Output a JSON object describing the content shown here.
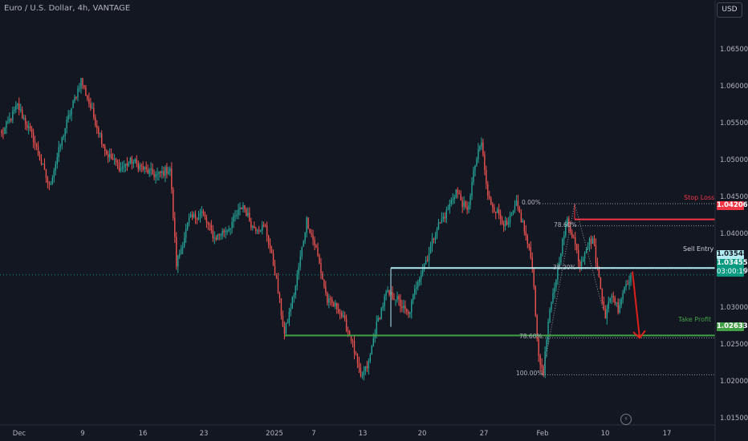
{
  "title": "Euro / U.S. Dollar, 4h, VANTAGE",
  "currency_button": "USD",
  "colors": {
    "background": "#131722",
    "up": "#26a69a",
    "down": "#ef5350",
    "stop_loss": "#f23645",
    "entry": "#b2ebf2",
    "take_profit": "#43a047",
    "current": "#089981",
    "arrow": "#e0201b",
    "fib": "#9598a1"
  },
  "chart_data": {
    "type": "candlestick",
    "ylim": [
      1.0142,
      1.0718
    ],
    "y_ticks": [
      "1.06500",
      "1.06000",
      "1.05500",
      "1.05000",
      "1.04500",
      "1.04000",
      "1.03500",
      "1.03000",
      "1.02500",
      "1.02000",
      "1.01500"
    ],
    "x_ticks": [
      "Dec",
      "9",
      "16",
      "23",
      "2025",
      "7",
      "13",
      "20",
      "27",
      "Feb",
      "10",
      "17"
    ],
    "price_path_anchors": [
      {
        "i": 0,
        "p": 1.0535
      },
      {
        "i": 10,
        "p": 1.0575
      },
      {
        "i": 20,
        "p": 1.053
      },
      {
        "i": 30,
        "p": 1.0465
      },
      {
        "i": 40,
        "p": 1.0545
      },
      {
        "i": 50,
        "p": 1.061
      },
      {
        "i": 58,
        "p": 1.056
      },
      {
        "i": 66,
        "p": 1.051
      },
      {
        "i": 75,
        "p": 1.049
      },
      {
        "i": 82,
        "p": 1.05
      },
      {
        "i": 92,
        "p": 1.0485
      },
      {
        "i": 98,
        "p": 1.048
      },
      {
        "i": 106,
        "p": 1.049
      },
      {
        "i": 110,
        "p": 1.036
      },
      {
        "i": 118,
        "p": 1.042
      },
      {
        "i": 126,
        "p": 1.043
      },
      {
        "i": 134,
        "p": 1.0395
      },
      {
        "i": 143,
        "p": 1.041
      },
      {
        "i": 152,
        "p": 1.044
      },
      {
        "i": 158,
        "p": 1.041
      },
      {
        "i": 166,
        "p": 1.041
      },
      {
        "i": 172,
        "p": 1.035
      },
      {
        "i": 178,
        "p": 1.0265
      },
      {
        "i": 185,
        "p": 1.033
      },
      {
        "i": 192,
        "p": 1.042
      },
      {
        "i": 198,
        "p": 1.038
      },
      {
        "i": 205,
        "p": 1.031
      },
      {
        "i": 212,
        "p": 1.03
      },
      {
        "i": 220,
        "p": 1.026
      },
      {
        "i": 226,
        "p": 1.0205
      },
      {
        "i": 231,
        "p": 1.0225
      },
      {
        "i": 235,
        "p": 1.027
      },
      {
        "i": 242,
        "p": 1.032
      },
      {
        "i": 248,
        "p": 1.0315
      },
      {
        "i": 256,
        "p": 1.029
      },
      {
        "i": 262,
        "p": 1.034
      },
      {
        "i": 268,
        "p": 1.037
      },
      {
        "i": 274,
        "p": 1.041
      },
      {
        "i": 280,
        "p": 1.043
      },
      {
        "i": 286,
        "p": 1.046
      },
      {
        "i": 293,
        "p": 1.043
      },
      {
        "i": 298,
        "p": 1.0495
      },
      {
        "i": 302,
        "p": 1.0525
      },
      {
        "i": 306,
        "p": 1.045
      },
      {
        "i": 312,
        "p": 1.043
      },
      {
        "i": 318,
        "p": 1.041
      },
      {
        "i": 324,
        "p": 1.044
      },
      {
        "i": 328,
        "p": 1.0415
      },
      {
        "i": 334,
        "p": 1.036
      },
      {
        "i": 338,
        "p": 1.023
      },
      {
        "i": 341,
        "p": 1.0215
      },
      {
        "i": 344,
        "p": 1.028
      },
      {
        "i": 348,
        "p": 1.033
      },
      {
        "i": 352,
        "p": 1.038
      },
      {
        "i": 356,
        "p": 1.042
      },
      {
        "i": 360,
        "p": 1.0395
      },
      {
        "i": 364,
        "p": 1.036
      },
      {
        "i": 368,
        "p": 1.0385
      },
      {
        "i": 372,
        "p": 1.0395
      },
      {
        "i": 376,
        "p": 1.034
      },
      {
        "i": 380,
        "p": 1.029
      },
      {
        "i": 384,
        "p": 1.032
      },
      {
        "i": 388,
        "p": 1.03
      },
      {
        "i": 392,
        "p": 1.033
      },
      {
        "i": 396,
        "p": 1.03455
      }
    ],
    "levels": {
      "stop_loss": {
        "label": "Stop Loss",
        "price": 1.04206,
        "badge": "1.04206"
      },
      "sell_entry": {
        "label": "Sell Entry",
        "price": 1.03548,
        "badge": "1.03548"
      },
      "take_profit": {
        "label": "Take Profit",
        "price": 1.02633,
        "badge": "1.02633"
      },
      "current": {
        "price": 1.03455,
        "badge": "1.03455",
        "countdown": "03:00:19"
      }
    },
    "fib_labels": [
      {
        "text": "0.00%",
        "price": 1.0442
      },
      {
        "text": "78.60%",
        "price": 1.0412
      },
      {
        "text": "38.20%",
        "price": 1.0354
      },
      {
        "text": "78.60%",
        "price": 1.026
      },
      {
        "text": "100.00%",
        "price": 1.021
      }
    ]
  }
}
